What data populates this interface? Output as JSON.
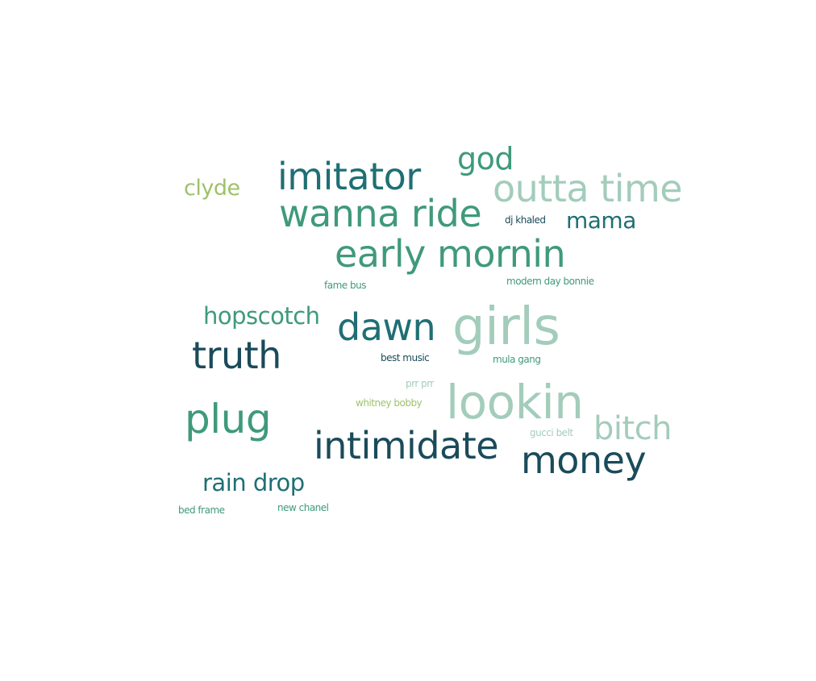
{
  "colors": {
    "dark_teal": "#1a4b5a",
    "teal": "#1f6f74",
    "green": "#3f9a7a",
    "light_green": "#a3ccbb",
    "olive": "#9ec26a"
  },
  "words": [
    {
      "text": "imitator"
    },
    {
      "text": "god"
    },
    {
      "text": "outta time"
    },
    {
      "text": "clyde"
    },
    {
      "text": "wanna ride"
    },
    {
      "text": "dj khaled"
    },
    {
      "text": "mama"
    },
    {
      "text": "early mornin"
    },
    {
      "text": "fame bus"
    },
    {
      "text": "modern day bonnie"
    },
    {
      "text": "hopscotch"
    },
    {
      "text": "dawn"
    },
    {
      "text": "girls"
    },
    {
      "text": "truth"
    },
    {
      "text": "best music"
    },
    {
      "text": "mula gang"
    },
    {
      "text": "prr prr"
    },
    {
      "text": "whitney bobby"
    },
    {
      "text": "lookin"
    },
    {
      "text": "plug"
    },
    {
      "text": "bitch"
    },
    {
      "text": "intimidate"
    },
    {
      "text": "gucci belt"
    },
    {
      "text": "money"
    },
    {
      "text": "rain drop"
    },
    {
      "text": "bed frame"
    },
    {
      "text": "new chanel"
    }
  ]
}
